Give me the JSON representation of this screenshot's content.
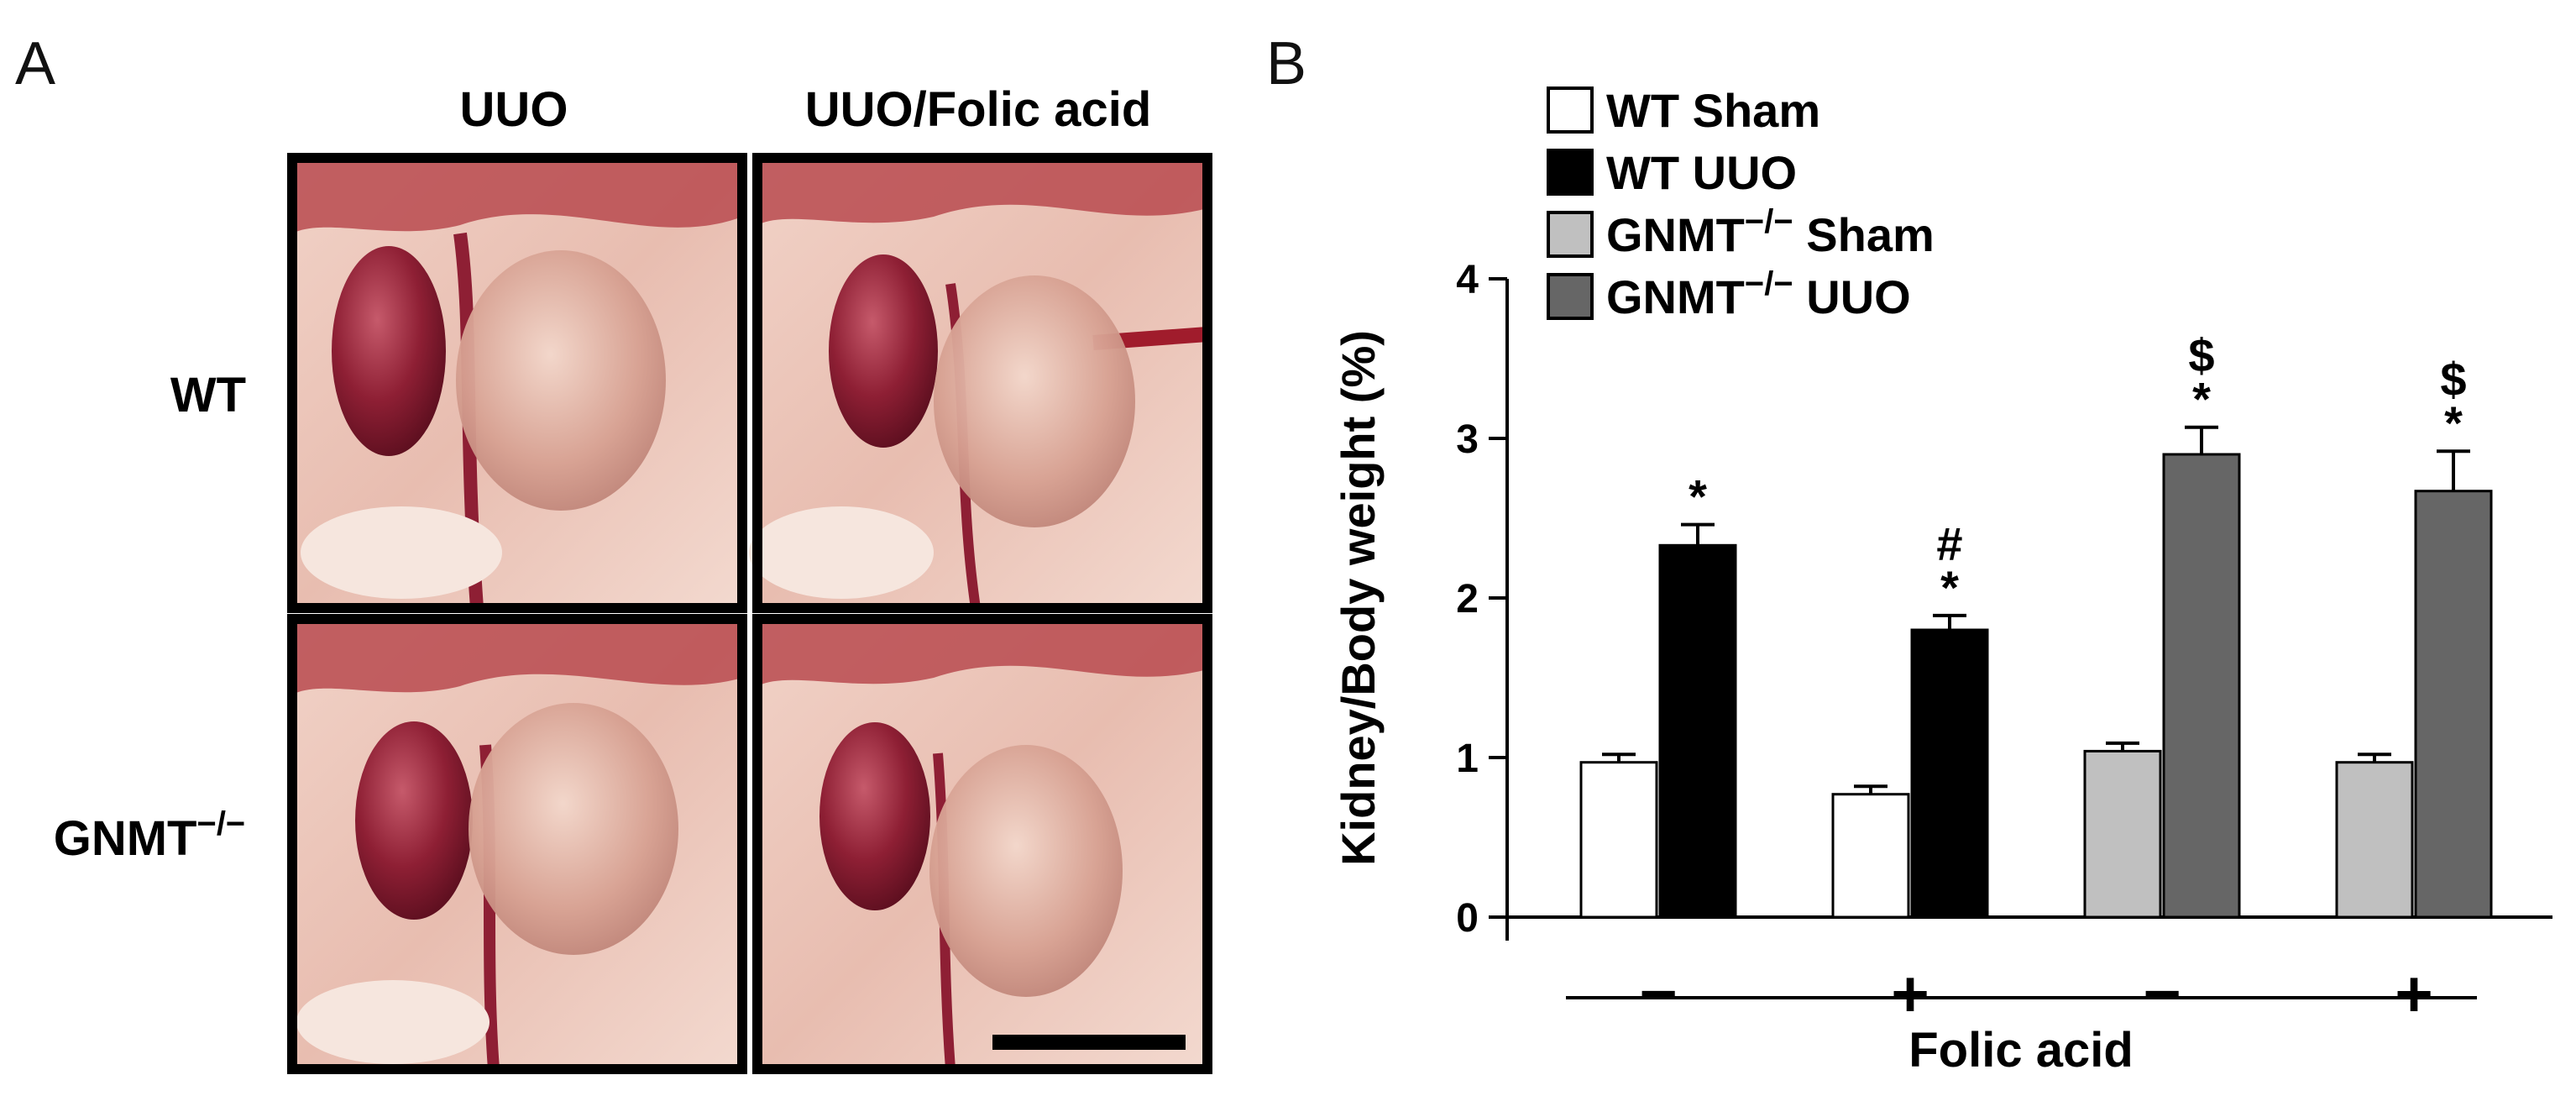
{
  "panel_a": {
    "letter": "A",
    "col_headers": [
      "UUO",
      "UUO/Folic acid"
    ],
    "row_headers": [
      {
        "base": "WT",
        "sup": ""
      },
      {
        "base": "GNMT",
        "sup": "−/−"
      }
    ]
  },
  "panel_b": {
    "letter": "B"
  },
  "colors": {
    "wt_sham": "#ffffff",
    "wt_uuo": "#000000",
    "gnmt_sham": "#c0c0c0",
    "gnmt_uuo": "#666666",
    "kidney_normal": "#8e1f34",
    "kidney_hydro": "#d7a192",
    "tissue": "#ecc3b6"
  },
  "chart_data": {
    "type": "bar",
    "ylabel": "Kidney/Body weight (%)",
    "xlabel": "Folic acid",
    "ylim": [
      0,
      4
    ],
    "yticks": [
      "0",
      "1",
      "2",
      "3",
      "4"
    ],
    "legend_position": "top-left",
    "groups": [
      {
        "label": "−",
        "series": [
          "WT Sham",
          "WT UUO"
        ]
      },
      {
        "label": "+",
        "series": [
          "WT Sham",
          "WT UUO"
        ]
      },
      {
        "label": "−",
        "series": [
          "GNMT−/− Sham",
          "GNMT−/− UUO"
        ]
      },
      {
        "label": "+",
        "series": [
          "GNMT−/− Sham",
          "GNMT−/− UUO"
        ]
      }
    ],
    "series": [
      {
        "name": "WT Sham",
        "base": "WT Sham",
        "sup": "",
        "color": "#ffffff",
        "values": [
          0.97,
          0.77,
          null,
          null
        ],
        "errors": [
          0.05,
          0.05,
          null,
          null
        ]
      },
      {
        "name": "WT UUO",
        "base": "WT UUO",
        "sup": "",
        "color": "#000000",
        "values": [
          2.33,
          1.8,
          null,
          null
        ],
        "errors": [
          0.13,
          0.09,
          null,
          null
        ]
      },
      {
        "name": "GNMT−/− Sham",
        "base": "GNMT",
        "sup": "−/−",
        "tail": " Sham",
        "color": "#c0c0c0",
        "values": [
          null,
          null,
          1.04,
          0.97
        ],
        "errors": [
          null,
          null,
          0.05,
          0.05
        ]
      },
      {
        "name": "GNMT−/− UUO",
        "base": "GNMT",
        "sup": "−/−",
        "tail": " UUO",
        "color": "#666666",
        "values": [
          null,
          null,
          2.9,
          2.67
        ],
        "errors": [
          null,
          null,
          0.17,
          0.25
        ]
      }
    ],
    "annotations": [
      {
        "group": 0,
        "series": "WT UUO",
        "marks": [
          "*"
        ]
      },
      {
        "group": 1,
        "series": "WT UUO",
        "marks": [
          "#",
          "*"
        ]
      },
      {
        "group": 2,
        "series": "GNMT−/− UUO",
        "marks": [
          "$",
          "*"
        ]
      },
      {
        "group": 3,
        "series": "GNMT−/− UUO",
        "marks": [
          "$",
          "*"
        ]
      }
    ]
  }
}
